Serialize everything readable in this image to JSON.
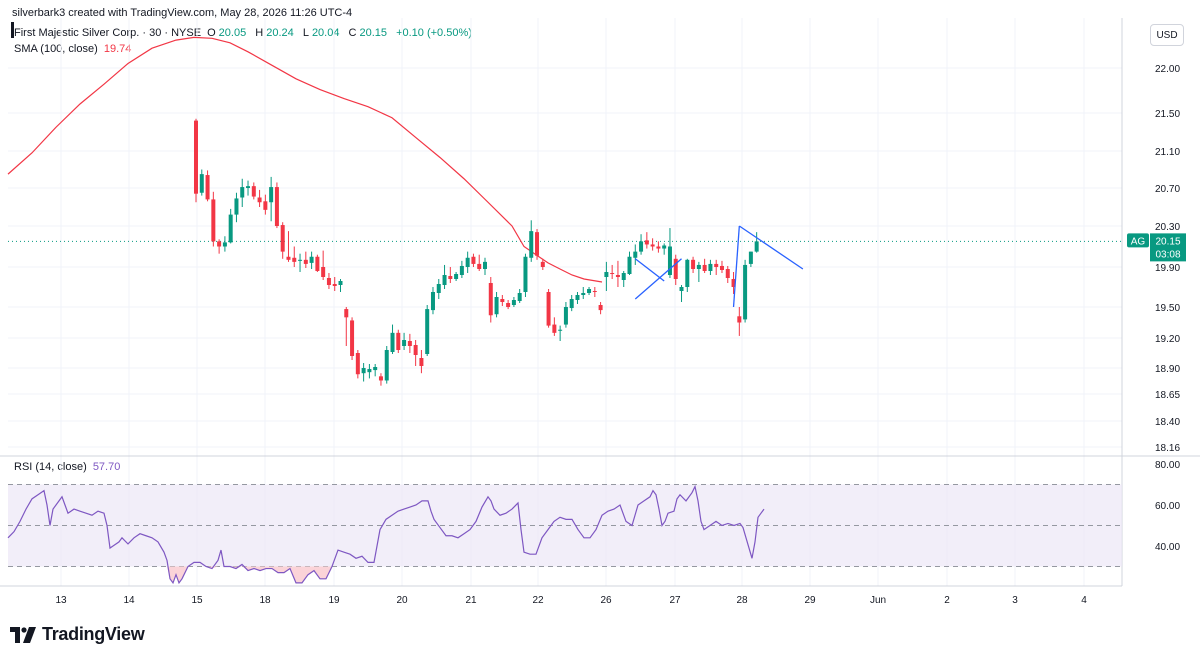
{
  "header": {
    "credit": "silverbark3 created with TradingView.com, May 28, 2026 11:26 UTC-4"
  },
  "legend": {
    "symbol": "First Majestic Silver Corp. · 30 · NYSE",
    "open_label": "O",
    "open": "20.05",
    "high_label": "H",
    "high": "20.24",
    "low_label": "L",
    "low": "20.04",
    "close_label": "C",
    "close": "20.15",
    "change": "+0.10 (+0.50%)",
    "sma_label": "SMA (100, close)",
    "sma_value": "19.74"
  },
  "rsi_legend": {
    "label": "RSI (14, close)",
    "value": "57.70"
  },
  "currency": "USD",
  "brand": {
    "name": "TradingView"
  },
  "colors": {
    "up": "#089981",
    "down": "#f23645",
    "sma": "#f23645",
    "rsi": "#7e57c2",
    "rsi_band": "#ede7f6",
    "overbought_sold_fill": "#fbd3d8",
    "current_badge": "#089981",
    "trendline": "#2962ff"
  },
  "chart_data": [
    {
      "type": "candlestick",
      "symbol": "AG",
      "interval": "30",
      "current_price": "20.15",
      "countdown": "03:08",
      "y_ticks": [
        "22.00",
        "21.50",
        "21.10",
        "20.70",
        "20.30",
        "19.90",
        "19.50",
        "19.20",
        "18.90",
        "18.65",
        "18.40",
        "18.16"
      ],
      "x_ticks": [
        "13",
        "14",
        "15",
        "18",
        "19",
        "20",
        "21",
        "22",
        "26",
        "27",
        "28",
        "29",
        "Jun",
        "2",
        "3",
        "4"
      ],
      "ohlc": [
        [
          21.42,
          21.44,
          20.55,
          20.64
        ],
        [
          20.65,
          20.9,
          20.62,
          20.85
        ],
        [
          20.84,
          20.89,
          20.56,
          20.58
        ],
        [
          20.58,
          20.66,
          20.1,
          20.15
        ],
        [
          20.15,
          20.17,
          20.03,
          20.1
        ],
        [
          20.1,
          20.2,
          20.05,
          20.14
        ],
        [
          20.14,
          20.48,
          20.13,
          20.42
        ],
        [
          20.42,
          20.65,
          20.34,
          20.59
        ],
        [
          20.6,
          20.8,
          20.5,
          20.71
        ],
        [
          20.7,
          20.78,
          20.62,
          20.72
        ],
        [
          20.72,
          20.76,
          20.58,
          20.61
        ],
        [
          20.6,
          20.68,
          20.5,
          20.55
        ],
        [
          20.56,
          20.63,
          20.42,
          20.47
        ],
        [
          20.55,
          20.82,
          20.35,
          20.71
        ],
        [
          20.71,
          20.76,
          20.28,
          20.3
        ],
        [
          20.31,
          20.34,
          19.98,
          20.05
        ],
        [
          20.0,
          20.25,
          19.95,
          19.97
        ],
        [
          19.99,
          20.1,
          19.9,
          19.95
        ],
        [
          19.96,
          20.03,
          19.85,
          19.97
        ],
        [
          19.97,
          20.05,
          19.89,
          19.93
        ],
        [
          19.94,
          20.05,
          19.88,
          20.0
        ],
        [
          20.0,
          20.02,
          19.85,
          19.86
        ],
        [
          19.9,
          20.06,
          19.77,
          19.8
        ],
        [
          19.79,
          19.84,
          19.68,
          19.72
        ],
        [
          19.73,
          19.8,
          19.66,
          19.71
        ],
        [
          19.72,
          19.78,
          19.65,
          19.76
        ],
        [
          19.48,
          19.5,
          19.12,
          19.4
        ],
        [
          19.37,
          19.4,
          18.98,
          19.02
        ],
        [
          19.05,
          19.08,
          18.8,
          18.84
        ],
        [
          18.85,
          18.95,
          18.77,
          18.9
        ],
        [
          18.86,
          18.94,
          18.8,
          18.89
        ],
        [
          18.88,
          18.94,
          18.82,
          18.91
        ],
        [
          18.82,
          18.85,
          18.73,
          18.78
        ],
        [
          18.78,
          19.12,
          18.75,
          19.08
        ],
        [
          19.06,
          19.33,
          19.04,
          19.25
        ],
        [
          19.25,
          19.28,
          19.05,
          19.08
        ],
        [
          19.12,
          19.25,
          19.08,
          19.18
        ],
        [
          19.17,
          19.24,
          19.05,
          19.12
        ],
        [
          19.13,
          19.18,
          18.92,
          19.03
        ],
        [
          19.0,
          19.08,
          18.85,
          18.92
        ],
        [
          19.04,
          19.52,
          19.02,
          19.48
        ],
        [
          19.47,
          19.7,
          19.43,
          19.65
        ],
        [
          19.64,
          19.78,
          19.58,
          19.73
        ],
        [
          19.72,
          19.92,
          19.68,
          19.82
        ],
        [
          19.81,
          19.9,
          19.74,
          19.78
        ],
        [
          19.78,
          19.85,
          19.76,
          19.83
        ],
        [
          19.82,
          19.96,
          19.79,
          19.91
        ],
        [
          19.9,
          20.05,
          19.84,
          19.99
        ],
        [
          20.0,
          20.03,
          19.9,
          19.93
        ],
        [
          19.93,
          20.02,
          19.86,
          19.88
        ],
        [
          19.88,
          19.99,
          19.82,
          19.95
        ],
        [
          19.74,
          19.8,
          19.35,
          19.42
        ],
        [
          19.43,
          19.65,
          19.4,
          19.6
        ],
        [
          19.58,
          19.62,
          19.51,
          19.55
        ],
        [
          19.54,
          19.57,
          19.48,
          19.5
        ],
        [
          19.52,
          19.6,
          19.5,
          19.57
        ],
        [
          19.56,
          19.68,
          19.54,
          19.64
        ],
        [
          19.65,
          20.03,
          19.6,
          20.0
        ],
        [
          19.99,
          20.36,
          19.95,
          20.25
        ],
        [
          20.24,
          20.27,
          19.97,
          20.01
        ],
        [
          19.95,
          19.98,
          19.87,
          19.9
        ],
        [
          19.65,
          19.68,
          19.3,
          19.32
        ],
        [
          19.33,
          19.4,
          19.22,
          19.25
        ],
        [
          19.27,
          19.32,
          19.17,
          19.28
        ],
        [
          19.33,
          19.55,
          19.3,
          19.5
        ],
        [
          19.49,
          19.62,
          19.46,
          19.58
        ],
        [
          19.57,
          19.65,
          19.53,
          19.62
        ],
        [
          19.62,
          19.7,
          19.58,
          19.64
        ],
        [
          19.64,
          19.7,
          19.62,
          19.68
        ],
        [
          19.66,
          19.7,
          19.6,
          19.65
        ],
        [
          19.52,
          19.55,
          19.43,
          19.47
        ],
        [
          19.8,
          19.95,
          19.66,
          19.85
        ],
        [
          19.84,
          19.92,
          19.78,
          19.83
        ],
        [
          19.82,
          19.96,
          19.7,
          19.8
        ],
        [
          19.77,
          19.86,
          19.7,
          19.84
        ],
        [
          19.83,
          20.05,
          19.82,
          20.0
        ],
        [
          19.99,
          20.12,
          19.92,
          20.05
        ],
        [
          20.05,
          20.22,
          20.02,
          20.15
        ],
        [
          20.16,
          20.24,
          20.08,
          20.12
        ],
        [
          20.12,
          20.18,
          20.06,
          20.1
        ],
        [
          20.1,
          20.15,
          20.04,
          20.08
        ],
        [
          20.08,
          20.13,
          20.02,
          20.11
        ],
        [
          19.82,
          20.28,
          19.79,
          20.1
        ],
        [
          19.98,
          20.02,
          19.72,
          19.78
        ],
        [
          19.66,
          19.72,
          19.55,
          19.7
        ],
        [
          19.7,
          19.98,
          19.65,
          19.97
        ],
        [
          19.97,
          20.0,
          19.84,
          19.88
        ],
        [
          19.88,
          19.95,
          19.75,
          19.92
        ],
        [
          19.92,
          19.98,
          19.84,
          19.86
        ],
        [
          19.86,
          19.97,
          19.82,
          19.93
        ],
        [
          19.93,
          19.97,
          19.82,
          19.9
        ],
        [
          19.91,
          19.96,
          19.84,
          19.87
        ],
        [
          19.88,
          19.91,
          19.74,
          19.79
        ],
        [
          19.78,
          19.85,
          19.63,
          19.7
        ],
        [
          19.41,
          19.5,
          19.22,
          19.35
        ],
        [
          19.38,
          19.97,
          19.35,
          19.92
        ],
        [
          19.93,
          20.05,
          19.9,
          20.05
        ],
        [
          20.05,
          20.24,
          20.04,
          20.15
        ]
      ],
      "sma_100": [
        [
          0,
          20.85
        ],
        [
          8,
          21.08
        ],
        [
          16,
          21.35
        ],
        [
          24,
          21.6
        ],
        [
          32,
          21.82
        ],
        [
          40,
          22.05
        ],
        [
          48,
          22.22
        ],
        [
          56,
          22.31
        ],
        [
          62,
          22.34
        ],
        [
          68,
          22.33
        ],
        [
          74,
          22.28
        ],
        [
          80,
          22.18
        ],
        [
          88,
          22.03
        ],
        [
          96,
          21.88
        ],
        [
          104,
          21.76
        ],
        [
          112,
          21.66
        ],
        [
          120,
          21.57
        ],
        [
          128,
          21.45
        ],
        [
          136,
          21.24
        ],
        [
          144,
          21.03
        ],
        [
          152,
          20.8
        ],
        [
          160,
          20.55
        ],
        [
          168,
          20.3
        ],
        [
          172,
          20.1
        ],
        [
          176,
          20.02
        ],
        [
          180,
          19.94
        ],
        [
          184,
          19.88
        ],
        [
          188,
          19.82
        ],
        [
          192,
          19.78
        ],
        [
          198,
          19.75
        ]
      ],
      "annotations": {
        "trend_lines": [
          [
            [
              176,
              19.58
            ],
            [
              184,
              19.98
            ]
          ],
          [
            [
              176,
              19.98
            ],
            [
              181,
              19.76
            ]
          ],
          [
            [
              194,
              20.3
            ],
            [
              193,
              19.5
            ]
          ],
          [
            [
              194,
              20.3
            ],
            [
              205,
              19.88
            ]
          ]
        ]
      }
    },
    {
      "type": "line",
      "name": "RSI (14, close)",
      "y_ticks": [
        "80.00",
        "60.00",
        "40.00"
      ],
      "levels": {
        "upper": 70,
        "middle": 50,
        "lower": 30
      },
      "values": [
        [
          0,
          44
        ],
        [
          2,
          47
        ],
        [
          4,
          52
        ],
        [
          6,
          58
        ],
        [
          8,
          63
        ],
        [
          10,
          65
        ],
        [
          12,
          67
        ],
        [
          13,
          60
        ],
        [
          14,
          50
        ],
        [
          15,
          58
        ],
        [
          17,
          62
        ],
        [
          18,
          64
        ],
        [
          19,
          60
        ],
        [
          20,
          56
        ],
        [
          22,
          58
        ],
        [
          24,
          57
        ],
        [
          26,
          56
        ],
        [
          28,
          55
        ],
        [
          30,
          57
        ],
        [
          32,
          56
        ],
        [
          33,
          50
        ],
        [
          34,
          39
        ],
        [
          35,
          40
        ],
        [
          37,
          42
        ],
        [
          38,
          44
        ],
        [
          40,
          41
        ],
        [
          42,
          44
        ],
        [
          44,
          46
        ],
        [
          46,
          45
        ],
        [
          48,
          44
        ],
        [
          50,
          42
        ],
        [
          52,
          37
        ],
        [
          53,
          33
        ],
        [
          54,
          24
        ],
        [
          55,
          22
        ],
        [
          56,
          26
        ],
        [
          57,
          22
        ],
        [
          58,
          24
        ],
        [
          60,
          30
        ],
        [
          62,
          32
        ],
        [
          64,
          32
        ],
        [
          66,
          30
        ],
        [
          68,
          29
        ],
        [
          70,
          33
        ],
        [
          71,
          38
        ],
        [
          72,
          30
        ],
        [
          74,
          30
        ],
        [
          76,
          29
        ],
        [
          78,
          31
        ],
        [
          80,
          28
        ],
        [
          82,
          29
        ],
        [
          84,
          28
        ],
        [
          86,
          29
        ],
        [
          88,
          29
        ],
        [
          90,
          27
        ],
        [
          92,
          27
        ],
        [
          94,
          29
        ],
        [
          96,
          22
        ],
        [
          98,
          22
        ],
        [
          100,
          26
        ],
        [
          102,
          28
        ],
        [
          104,
          24
        ],
        [
          106,
          24
        ],
        [
          108,
          30
        ],
        [
          110,
          38
        ],
        [
          112,
          37
        ],
        [
          114,
          36
        ],
        [
          116,
          34
        ],
        [
          118,
          35
        ],
        [
          120,
          32
        ],
        [
          122,
          32
        ],
        [
          123,
          40
        ],
        [
          124,
          48
        ],
        [
          126,
          53
        ],
        [
          128,
          55
        ],
        [
          130,
          57
        ],
        [
          132,
          58
        ],
        [
          134,
          59
        ],
        [
          136,
          60
        ],
        [
          138,
          62
        ],
        [
          140,
          62
        ],
        [
          141,
          57
        ],
        [
          142,
          53
        ],
        [
          144,
          49
        ],
        [
          146,
          45
        ],
        [
          148,
          45
        ],
        [
          150,
          44
        ],
        [
          152,
          46
        ],
        [
          154,
          48
        ],
        [
          156,
          52
        ],
        [
          158,
          59
        ],
        [
          160,
          64
        ],
        [
          161,
          62
        ],
        [
          162,
          58
        ],
        [
          164,
          55
        ],
        [
          166,
          56
        ],
        [
          168,
          58
        ],
        [
          170,
          61
        ],
        [
          171,
          48
        ],
        [
          172,
          37
        ],
        [
          174,
          36
        ],
        [
          176,
          36
        ],
        [
          178,
          44
        ],
        [
          180,
          48
        ],
        [
          182,
          52
        ],
        [
          184,
          54
        ],
        [
          186,
          53
        ],
        [
          188,
          53
        ],
        [
          190,
          48
        ],
        [
          192,
          44
        ],
        [
          194,
          44
        ],
        [
          196,
          48
        ],
        [
          198,
          55
        ],
        [
          200,
          57
        ],
        [
          202,
          58
        ],
        [
          204,
          60
        ],
        [
          206,
          52
        ],
        [
          208,
          50
        ],
        [
          210,
          60
        ],
        [
          212,
          62
        ],
        [
          214,
          64
        ],
        [
          215,
          67
        ],
        [
          216,
          65
        ],
        [
          217,
          58
        ],
        [
          218,
          50
        ],
        [
          219,
          52
        ],
        [
          220,
          56
        ],
        [
          222,
          57
        ],
        [
          223,
          63
        ],
        [
          224,
          65
        ],
        [
          226,
          62
        ],
        [
          228,
          66
        ],
        [
          229,
          69
        ],
        [
          230,
          62
        ],
        [
          231,
          52
        ],
        [
          232,
          48
        ],
        [
          234,
          50
        ],
        [
          236,
          52
        ],
        [
          238,
          50
        ],
        [
          240,
          51
        ],
        [
          242,
          50
        ],
        [
          244,
          51
        ],
        [
          245,
          49
        ],
        [
          246,
          44
        ],
        [
          248,
          34
        ],
        [
          249,
          42
        ],
        [
          250,
          54
        ],
        [
          251,
          56
        ],
        [
          252,
          58
        ]
      ]
    }
  ]
}
